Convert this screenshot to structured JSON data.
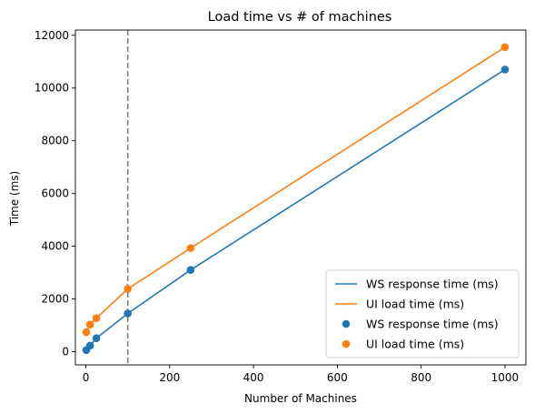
{
  "chart_data": {
    "type": "line",
    "title": "Load time vs # of machines",
    "xlabel": "Number of Machines",
    "ylabel": "Time (ms)",
    "xlim": [
      -25,
      1050
    ],
    "ylim": [
      -500,
      12200
    ],
    "xticks": [
      0,
      200,
      400,
      600,
      800,
      1000
    ],
    "yticks": [
      0,
      2000,
      4000,
      6000,
      8000,
      10000,
      12000
    ],
    "x": [
      1,
      10,
      25,
      100,
      250,
      1000
    ],
    "reference_line": {
      "x": 100,
      "style": "dashed",
      "color": "#7f7f7f"
    },
    "series": [
      {
        "name": "WS response time (ms)",
        "color": "#1f77b4",
        "values": [
          60,
          230,
          510,
          1450,
          3100,
          10700
        ]
      },
      {
        "name": "UI load time (ms)",
        "color": "#ff7f0e",
        "values": [
          740,
          1030,
          1270,
          2380,
          3930,
          11550
        ]
      }
    ],
    "legend": {
      "placement": "lower-right",
      "entries": [
        {
          "label": "WS response time (ms)",
          "kind": "line",
          "color": "#1f77b4"
        },
        {
          "label": "UI load time (ms)",
          "kind": "line",
          "color": "#ff7f0e"
        },
        {
          "label": "WS response time (ms)",
          "kind": "marker",
          "color": "#1f77b4"
        },
        {
          "label": "UI load time (ms)",
          "kind": "marker",
          "color": "#ff7f0e"
        }
      ]
    },
    "grid": false
  }
}
